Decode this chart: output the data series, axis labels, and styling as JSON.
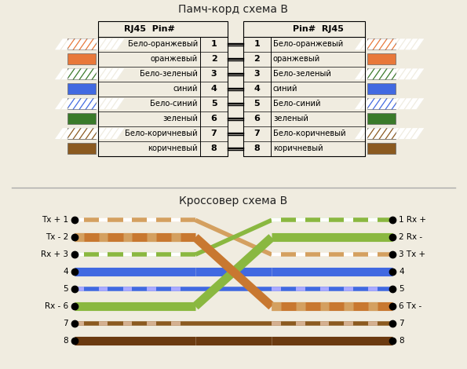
{
  "title1": "Памч-корд схема B",
  "title2": "Кроссовер схема B",
  "bg_color": "#f0ece0",
  "pin_labels_left": [
    "Бело-оранжевый",
    "оранжевый",
    "Бело-зеленый",
    "синий",
    "Бело-синий",
    "зеленый",
    "Бело-коричневый",
    "коричневый"
  ],
  "pin_labels_right": [
    "Бело-оранжевый",
    "оранжевый",
    "Бело-зеленый",
    "синий",
    "Бело-синий",
    "зеленый",
    "Бело-коричневый",
    "коричневый"
  ],
  "swatch_colors": [
    {
      "main": "#e8783a",
      "stripe": "#ffffff"
    },
    {
      "main": "#e8783a",
      "stripe": null
    },
    {
      "main": "#3a7a2a",
      "stripe": "#ffffff"
    },
    {
      "main": "#4169e1",
      "stripe": null
    },
    {
      "main": "#4169e1",
      "stripe": "#ffffff"
    },
    {
      "main": "#3a7a2a",
      "stripe": null
    },
    {
      "main": "#8b5a20",
      "stripe": "#ffffff"
    },
    {
      "main": "#8b5a20",
      "stripe": null
    }
  ],
  "wire_props": [
    {
      "main": "#d4a060",
      "stripe": "#ffffff",
      "lw": 4
    },
    {
      "main": "#c87830",
      "stripe": "#d4a060",
      "lw": 8
    },
    {
      "main": "#8ab840",
      "stripe": "#ffffff",
      "lw": 4
    },
    {
      "main": "#4169e1",
      "stripe": null,
      "lw": 8
    },
    {
      "main": "#4169e1",
      "stripe": "#aaaaff",
      "lw": 4
    },
    {
      "main": "#8ab840",
      "stripe": null,
      "lw": 8
    },
    {
      "main": "#8b5a20",
      "stripe": "#d4b090",
      "lw": 4
    },
    {
      "main": "#6b3a10",
      "stripe": null,
      "lw": 8
    }
  ],
  "left_labels_cross": [
    "Tx + 1",
    "Tx - 2",
    "Rx + 3",
    "4",
    "5",
    "Rx - 6",
    "7",
    "8"
  ],
  "right_labels_cross": [
    "1 Rx +",
    "2 Rx -",
    "3 Tx +",
    "4",
    "5",
    "6 Tx -",
    "7",
    "8"
  ],
  "cross_map": [
    3,
    6,
    1,
    4,
    5,
    2,
    7,
    8
  ]
}
